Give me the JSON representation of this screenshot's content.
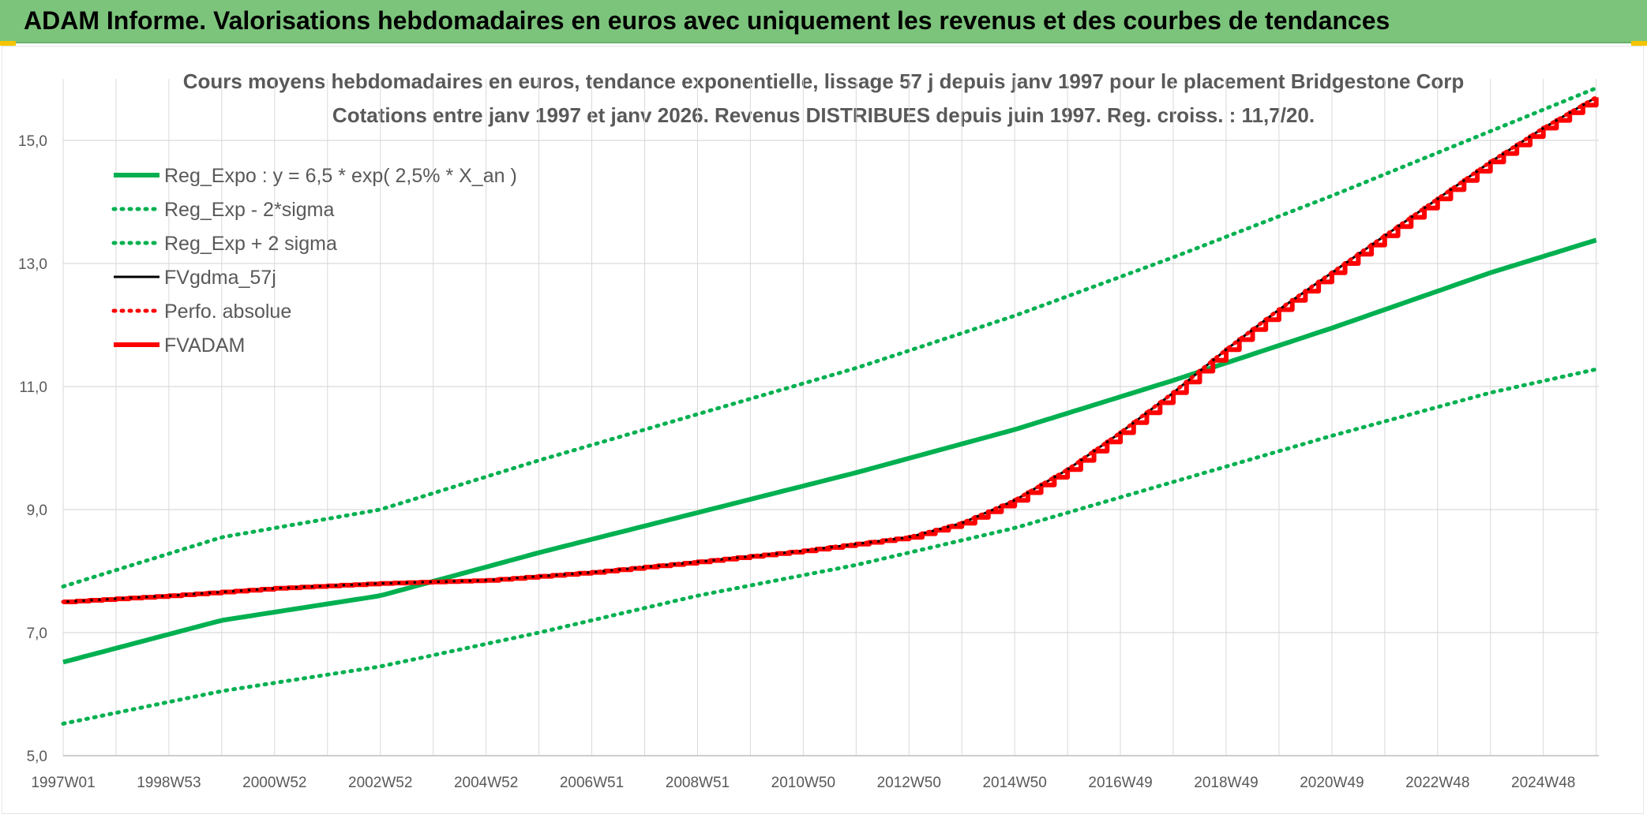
{
  "banner": {
    "title": "ADAM Informe. Valorisations hebdomadaires en euros avec uniquement les revenus et des courbes de tendances"
  },
  "colors": {
    "banner_bg": "#7cc47c",
    "reg_expo": "#00b050",
    "fv_gdma": "#000000",
    "fvadam": "#ff0000",
    "perfo": "#ff0000",
    "grid": "#d9d9d9",
    "text": "#595959"
  },
  "chart_data": {
    "type": "line",
    "title": "Cours moyens hebdomadaires en euros, tendance exponentielle, lissage 57 j depuis janv 1997 pour le placement Bridgestone Corp",
    "subtitle": "Cotations entre janv 1997 et janv 2026. Revenus DISTRIBUES depuis juin 1997. Reg. croiss. : 11,7/20.",
    "x_ticks": [
      "1997W01",
      "1998W53",
      "2000W52",
      "2002W52",
      "2004W52",
      "2006W51",
      "2008W51",
      "2010W50",
      "2012W50",
      "2014W50",
      "2016W49",
      "2018W49",
      "2020W49",
      "2022W48",
      "2024W48"
    ],
    "x_range": [
      1997.0,
      2026.05
    ],
    "ylim": [
      5.0,
      16.0
    ],
    "y_ticks": [
      "5,0",
      "7,0",
      "9,0",
      "11,0",
      "13,0",
      "15,0"
    ],
    "y_tick_values": [
      5,
      7,
      9,
      11,
      13,
      15
    ],
    "grid": true,
    "legend_position": "top-left",
    "series": [
      {
        "name": "Reg_Expo : y = 6,5 * exp( 2,5% *  X_an )",
        "style": "solid-thick",
        "color": "#00b050",
        "x": [
          1997,
          2000,
          2003,
          2006,
          2009,
          2012,
          2015,
          2018,
          2021,
          2024,
          2026
        ],
        "y": [
          6.52,
          7.2,
          7.6,
          8.3,
          8.95,
          9.6,
          10.3,
          11.1,
          11.95,
          12.85,
          13.38
        ]
      },
      {
        "name": "Reg_Exp - 2*sigma",
        "style": "dotted",
        "color": "#00b050",
        "x": [
          1997,
          2000,
          2003,
          2006,
          2009,
          2012,
          2015,
          2018,
          2021,
          2024,
          2026
        ],
        "y": [
          5.52,
          6.05,
          6.45,
          7.0,
          7.6,
          8.1,
          8.7,
          9.45,
          10.2,
          10.9,
          11.28
        ]
      },
      {
        "name": "Reg_Exp + 2 sigma",
        "style": "dotted",
        "color": "#00b050",
        "x": [
          1997,
          2000,
          2003,
          2006,
          2009,
          2012,
          2015,
          2018,
          2021,
          2024,
          2026
        ],
        "y": [
          7.75,
          8.55,
          9.0,
          9.8,
          10.55,
          11.3,
          12.15,
          13.1,
          14.1,
          15.15,
          15.85
        ]
      },
      {
        "name": "FVgdma_57j",
        "style": "solid",
        "color": "#000000",
        "x": [
          1997,
          1999,
          2001,
          2003,
          2005,
          2007,
          2009,
          2011,
          2013,
          2014,
          2015,
          2016,
          2017,
          2018,
          2019,
          2020,
          2021,
          2022,
          2023,
          2024,
          2025,
          2026
        ],
        "y": [
          7.5,
          7.6,
          7.72,
          7.8,
          7.85,
          7.98,
          8.15,
          8.33,
          8.55,
          8.78,
          9.15,
          9.65,
          10.25,
          10.9,
          11.6,
          12.25,
          12.85,
          13.45,
          14.05,
          14.65,
          15.2,
          15.7
        ]
      },
      {
        "name": "Perfo. absolue",
        "style": "dotted",
        "color": "#ff0000",
        "x": [
          1997,
          1999,
          2001,
          2003,
          2005,
          2007,
          2009,
          2011,
          2013,
          2014,
          2015,
          2016,
          2017,
          2018,
          2019,
          2020,
          2021,
          2022,
          2023,
          2024,
          2025,
          2026
        ],
        "y": [
          7.5,
          7.6,
          7.72,
          7.8,
          7.85,
          7.98,
          8.15,
          8.33,
          8.55,
          8.78,
          9.15,
          9.65,
          10.25,
          10.9,
          11.6,
          12.25,
          12.85,
          13.45,
          14.05,
          14.65,
          15.2,
          15.7
        ]
      },
      {
        "name": "FVADAM",
        "style": "step-thick",
        "color": "#ff0000",
        "x": [
          1997,
          1999,
          2001,
          2003,
          2005,
          2007,
          2009,
          2011,
          2013,
          2014,
          2015,
          2016,
          2017,
          2018,
          2019,
          2020,
          2021,
          2022,
          2023,
          2024,
          2025,
          2026
        ],
        "y": [
          7.5,
          7.6,
          7.72,
          7.8,
          7.85,
          7.98,
          8.15,
          8.33,
          8.55,
          8.78,
          9.15,
          9.65,
          10.25,
          10.9,
          11.6,
          12.25,
          12.85,
          13.45,
          14.05,
          14.65,
          15.2,
          15.7
        ]
      }
    ]
  }
}
